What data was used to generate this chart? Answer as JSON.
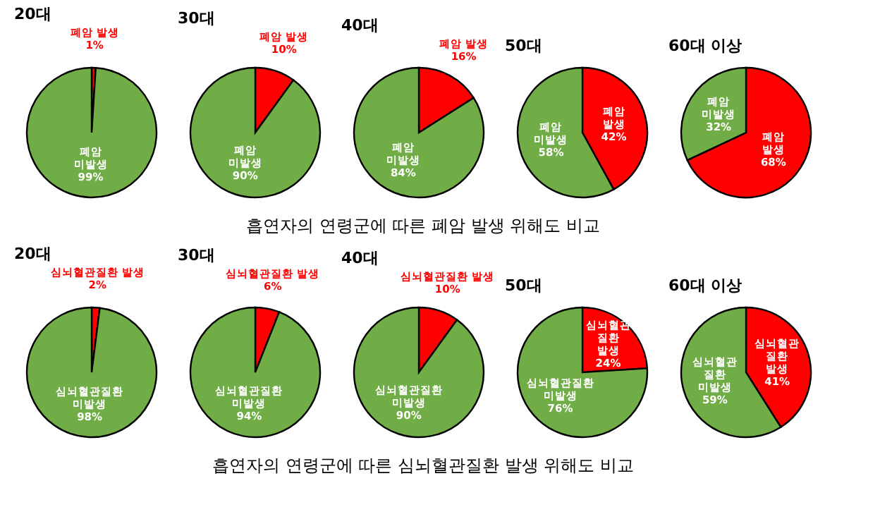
{
  "chart_data": [
    {
      "type": "pie",
      "title": "20대",
      "categories": [
        "폐암 발생",
        "폐암 미발생"
      ],
      "values": [
        1,
        99
      ],
      "colors": [
        "#ff0000",
        "#70ad47"
      ],
      "value_labels": [
        "1%",
        "99%"
      ],
      "annotations": [
        "흡연자의 연령군에 따른 폐암 발생 위해도 비교"
      ]
    },
    {
      "type": "pie",
      "title": "30대",
      "categories": [
        "폐암 발생",
        "폐암 미발생"
      ],
      "values": [
        10,
        90
      ],
      "colors": [
        "#ff0000",
        "#70ad47"
      ],
      "value_labels": [
        "10%",
        "90%"
      ]
    },
    {
      "type": "pie",
      "title": "40대",
      "categories": [
        "폐암 발생",
        "폐암 미발생"
      ],
      "values": [
        16,
        84
      ],
      "colors": [
        "#ff0000",
        "#70ad47"
      ],
      "value_labels": [
        "16%",
        "84%"
      ]
    },
    {
      "type": "pie",
      "title": "50대",
      "categories": [
        "폐암 발생",
        "폐암 미발생"
      ],
      "values": [
        42,
        58
      ],
      "colors": [
        "#ff0000",
        "#70ad47"
      ],
      "value_labels": [
        "42%",
        "58%"
      ]
    },
    {
      "type": "pie",
      "title": "60대 이상",
      "categories": [
        "폐암 발생",
        "폐암 미발생"
      ],
      "values": [
        68,
        32
      ],
      "colors": [
        "#ff0000",
        "#70ad47"
      ],
      "value_labels": [
        "68%",
        "32%"
      ]
    },
    {
      "type": "pie",
      "title": "20대",
      "categories": [
        "심뇌혈관질환 발생",
        "심뇌혈관질환 미발생"
      ],
      "values": [
        2,
        98
      ],
      "colors": [
        "#ff0000",
        "#70ad47"
      ],
      "value_labels": [
        "2%",
        "98%"
      ],
      "annotations": [
        "흡연자의 연령군에 따른 심뇌혈관질환 발생 위해도 비교"
      ]
    },
    {
      "type": "pie",
      "title": "30대",
      "categories": [
        "심뇌혈관질환 발생",
        "심뇌혈관질환 미발생"
      ],
      "values": [
        6,
        94
      ],
      "colors": [
        "#ff0000",
        "#70ad47"
      ],
      "value_labels": [
        "6%",
        "94%"
      ]
    },
    {
      "type": "pie",
      "title": "40대",
      "categories": [
        "심뇌혈관질환 발생",
        "심뇌혈관질환 미발생"
      ],
      "values": [
        10,
        90
      ],
      "colors": [
        "#ff0000",
        "#70ad47"
      ],
      "value_labels": [
        "10%",
        "90%"
      ]
    },
    {
      "type": "pie",
      "title": "50대",
      "categories": [
        "심뇌혈관 질환 발생",
        "심뇌혈관질환 미발생"
      ],
      "values": [
        24,
        76
      ],
      "colors": [
        "#ff0000",
        "#70ad47"
      ],
      "value_labels": [
        "24%",
        "76%"
      ]
    },
    {
      "type": "pie",
      "title": "60대 이상",
      "categories": [
        "심뇌혈관 질환 발생",
        "심뇌혈관 질환 미발생"
      ],
      "values": [
        41,
        59
      ],
      "colors": [
        "#ff0000",
        "#70ad47"
      ],
      "value_labels": [
        "41%",
        "59%"
      ]
    }
  ]
}
